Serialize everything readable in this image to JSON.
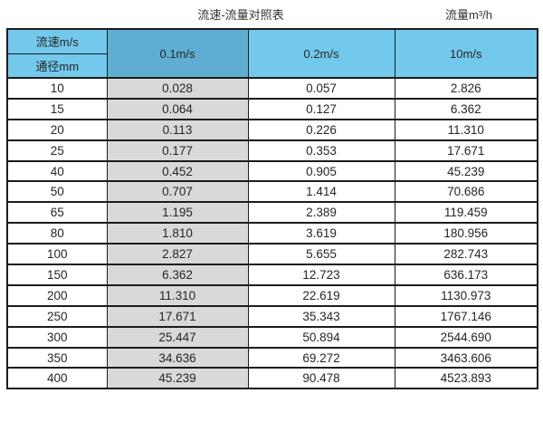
{
  "page": {
    "title_left": "流速-流量对照表",
    "title_right": "流量m³/h"
  },
  "table": {
    "velocity_header": "流速m/s",
    "diameter_header": "通径mm",
    "speed_columns": [
      "0.1m/s",
      "0.2m/s",
      "10m/s"
    ],
    "rows": [
      {
        "dn": "10",
        "values": [
          "0.028",
          "0.057",
          "2.826"
        ]
      },
      {
        "dn": "15",
        "values": [
          "0.064",
          "0.127",
          "6.362"
        ]
      },
      {
        "dn": "20",
        "values": [
          "0.113",
          "0.226",
          "11.310"
        ]
      },
      {
        "dn": "25",
        "values": [
          "0.177",
          "0.353",
          "17.671"
        ]
      },
      {
        "dn": "40",
        "values": [
          "0.452",
          "0.905",
          "45.239"
        ]
      },
      {
        "dn": "50",
        "values": [
          "0.707",
          "1.414",
          "70.686"
        ]
      },
      {
        "dn": "65",
        "values": [
          "1.195",
          "2.389",
          "119.459"
        ]
      },
      {
        "dn": "80",
        "values": [
          "1.810",
          "3.619",
          "180.956"
        ]
      },
      {
        "dn": "100",
        "values": [
          "2.827",
          "5.655",
          "282.743"
        ]
      },
      {
        "dn": "150",
        "values": [
          "6.362",
          "12.723",
          "636.173"
        ]
      },
      {
        "dn": "200",
        "values": [
          "11.310",
          "22.619",
          "1130.973"
        ]
      },
      {
        "dn": "250",
        "values": [
          "17.671",
          "35.343",
          "1767.146"
        ]
      },
      {
        "dn": "300",
        "values": [
          "25.447",
          "50.894",
          "2544.690"
        ]
      },
      {
        "dn": "350",
        "values": [
          "34.636",
          "69.272",
          "3463.606"
        ]
      },
      {
        "dn": "400",
        "values": [
          "45.239",
          "90.478",
          "4523.893"
        ]
      }
    ]
  },
  "colors": {
    "header_blue_light": "#73C9EC",
    "header_blue_dark": "#5FAED2",
    "shaded_column_gray": "#D9D9D9",
    "border": "#1b1b1b"
  },
  "chart_data": {
    "type": "table",
    "title": "流速-流量对照表",
    "unit_label": "流量m³/h",
    "row_axis_label": "通径mm",
    "col_axis_label": "流速m/s",
    "categories": [
      10,
      15,
      20,
      25,
      40,
      50,
      65,
      80,
      100,
      150,
      200,
      250,
      300,
      350,
      400
    ],
    "series": [
      {
        "name": "0.1m/s",
        "values": [
          0.028,
          0.064,
          0.113,
          0.177,
          0.452,
          0.707,
          1.195,
          1.81,
          2.827,
          6.362,
          11.31,
          17.671,
          25.447,
          34.636,
          45.239
        ]
      },
      {
        "name": "0.2m/s",
        "values": [
          0.057,
          0.127,
          0.226,
          0.353,
          0.905,
          1.414,
          2.389,
          3.619,
          5.655,
          12.723,
          22.619,
          35.343,
          50.894,
          69.272,
          90.478
        ]
      },
      {
        "name": "10m/s",
        "values": [
          2.826,
          6.362,
          11.31,
          17.671,
          45.239,
          70.686,
          119.459,
          180.956,
          282.743,
          636.173,
          1130.973,
          1767.146,
          2544.69,
          3463.606,
          4523.893
        ]
      }
    ]
  }
}
